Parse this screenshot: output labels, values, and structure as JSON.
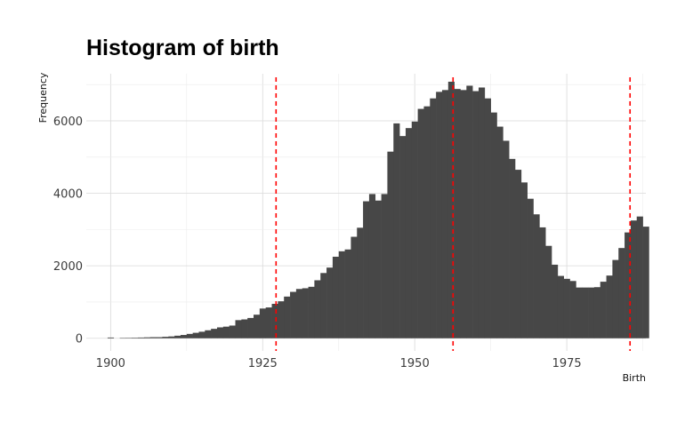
{
  "chart_data": {
    "type": "bar",
    "title": "Histogram of birth",
    "xlabel": "Birth",
    "ylabel": "Frequency",
    "xlim": [
      1896,
      1988
    ],
    "ylim": [
      -350,
      7300
    ],
    "x_ticks": [
      1900,
      1925,
      1950,
      1975
    ],
    "y_ticks": [
      0,
      2000,
      4000,
      6000
    ],
    "grid": true,
    "bin_width": 1,
    "bins": [
      {
        "x": 1900,
        "y": 20
      },
      {
        "x": 1901,
        "y": 0
      },
      {
        "x": 1902,
        "y": 5
      },
      {
        "x": 1903,
        "y": 10
      },
      {
        "x": 1904,
        "y": 15
      },
      {
        "x": 1905,
        "y": 20
      },
      {
        "x": 1906,
        "y": 25
      },
      {
        "x": 1907,
        "y": 30
      },
      {
        "x": 1908,
        "y": 30
      },
      {
        "x": 1909,
        "y": 40
      },
      {
        "x": 1910,
        "y": 50
      },
      {
        "x": 1911,
        "y": 70
      },
      {
        "x": 1912,
        "y": 90
      },
      {
        "x": 1913,
        "y": 120
      },
      {
        "x": 1914,
        "y": 150
      },
      {
        "x": 1915,
        "y": 180
      },
      {
        "x": 1916,
        "y": 220
      },
      {
        "x": 1917,
        "y": 260
      },
      {
        "x": 1918,
        "y": 300
      },
      {
        "x": 1919,
        "y": 320
      },
      {
        "x": 1920,
        "y": 350
      },
      {
        "x": 1921,
        "y": 500
      },
      {
        "x": 1922,
        "y": 520
      },
      {
        "x": 1923,
        "y": 560
      },
      {
        "x": 1924,
        "y": 650
      },
      {
        "x": 1925,
        "y": 820
      },
      {
        "x": 1926,
        "y": 850
      },
      {
        "x": 1927,
        "y": 950
      },
      {
        "x": 1928,
        "y": 1020
      },
      {
        "x": 1929,
        "y": 1150
      },
      {
        "x": 1930,
        "y": 1280
      },
      {
        "x": 1931,
        "y": 1360
      },
      {
        "x": 1932,
        "y": 1380
      },
      {
        "x": 1933,
        "y": 1420
      },
      {
        "x": 1934,
        "y": 1600
      },
      {
        "x": 1935,
        "y": 1800
      },
      {
        "x": 1936,
        "y": 1950
      },
      {
        "x": 1937,
        "y": 2250
      },
      {
        "x": 1938,
        "y": 2400
      },
      {
        "x": 1939,
        "y": 2450
      },
      {
        "x": 1940,
        "y": 2800
      },
      {
        "x": 1941,
        "y": 3050
      },
      {
        "x": 1942,
        "y": 3780
      },
      {
        "x": 1943,
        "y": 3980
      },
      {
        "x": 1944,
        "y": 3800
      },
      {
        "x": 1945,
        "y": 3980
      },
      {
        "x": 1946,
        "y": 5150
      },
      {
        "x": 1947,
        "y": 5930
      },
      {
        "x": 1948,
        "y": 5580
      },
      {
        "x": 1949,
        "y": 5800
      },
      {
        "x": 1950,
        "y": 5980
      },
      {
        "x": 1951,
        "y": 6330
      },
      {
        "x": 1952,
        "y": 6400
      },
      {
        "x": 1953,
        "y": 6620
      },
      {
        "x": 1954,
        "y": 6800
      },
      {
        "x": 1955,
        "y": 6850
      },
      {
        "x": 1956,
        "y": 7080
      },
      {
        "x": 1957,
        "y": 6880
      },
      {
        "x": 1958,
        "y": 6850
      },
      {
        "x": 1959,
        "y": 6970
      },
      {
        "x": 1960,
        "y": 6820
      },
      {
        "x": 1961,
        "y": 6920
      },
      {
        "x": 1962,
        "y": 6620
      },
      {
        "x": 1963,
        "y": 6230
      },
      {
        "x": 1964,
        "y": 5840
      },
      {
        "x": 1965,
        "y": 5450
      },
      {
        "x": 1966,
        "y": 4950
      },
      {
        "x": 1967,
        "y": 4650
      },
      {
        "x": 1968,
        "y": 4300
      },
      {
        "x": 1969,
        "y": 3850
      },
      {
        "x": 1970,
        "y": 3420
      },
      {
        "x": 1971,
        "y": 3060
      },
      {
        "x": 1972,
        "y": 2550
      },
      {
        "x": 1973,
        "y": 2030
      },
      {
        "x": 1974,
        "y": 1720
      },
      {
        "x": 1975,
        "y": 1640
      },
      {
        "x": 1976,
        "y": 1580
      },
      {
        "x": 1977,
        "y": 1400
      },
      {
        "x": 1978,
        "y": 1400
      },
      {
        "x": 1979,
        "y": 1400
      },
      {
        "x": 1980,
        "y": 1410
      },
      {
        "x": 1981,
        "y": 1560
      },
      {
        "x": 1982,
        "y": 1730
      },
      {
        "x": 1983,
        "y": 2160
      },
      {
        "x": 1984,
        "y": 2490
      },
      {
        "x": 1985,
        "y": 2920
      },
      {
        "x": 1986,
        "y": 3250
      },
      {
        "x": 1987,
        "y": 3360
      },
      {
        "x": 1988,
        "y": 3080
      }
    ],
    "reference_lines": [
      1927.2,
      1956.3,
      1985.4
    ],
    "reference_line_style": "dashed",
    "bar_color": "#474747",
    "reference_line_color": "#ff0000"
  }
}
